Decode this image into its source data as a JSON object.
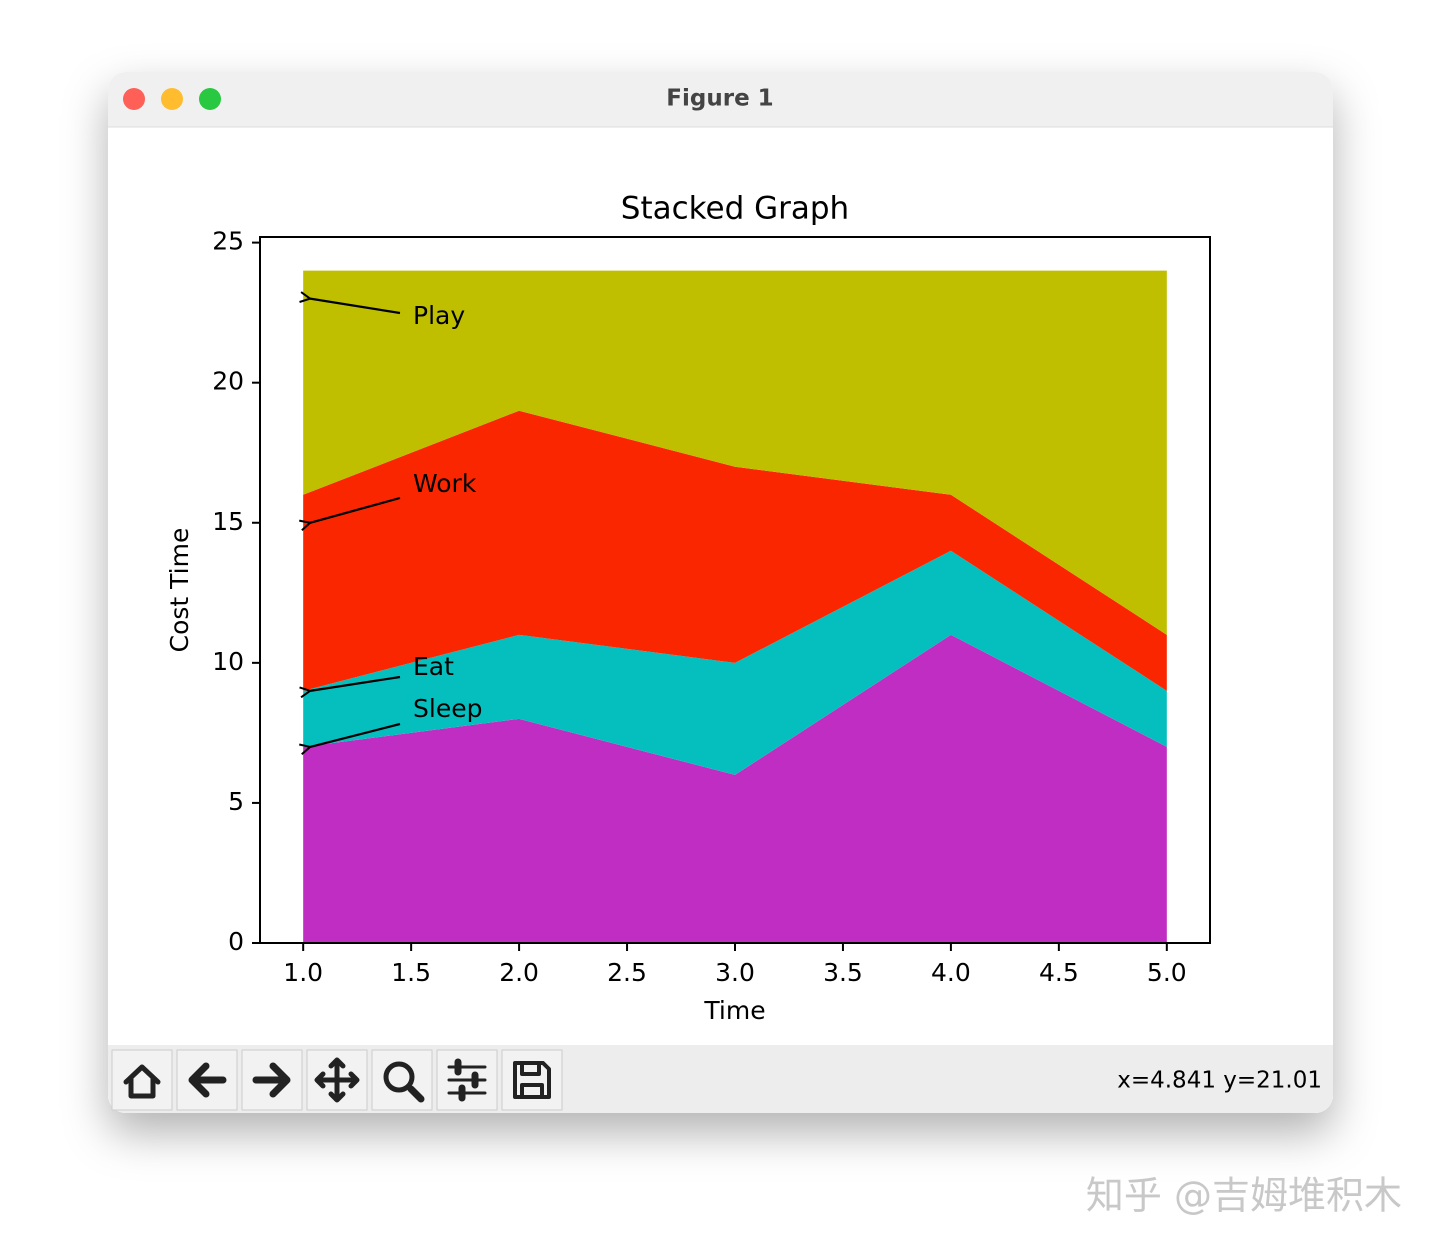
{
  "window": {
    "title": "Figure 1",
    "status": "x=4.841 y=21.01"
  },
  "watermark": "知乎 @吉姆堆积木",
  "chart_data": {
    "type": "stackplot",
    "title": "Stacked Graph",
    "x_label": "Time",
    "y_label": "Cost Time",
    "x": [
      1,
      2,
      3,
      4,
      5
    ],
    "series": [
      {
        "name": "Sleep",
        "color": "#c02dc2",
        "values": [
          7,
          8,
          6,
          11,
          7
        ]
      },
      {
        "name": "Eat",
        "color": "#05bfbf",
        "values": [
          2,
          3,
          4,
          3,
          2
        ]
      },
      {
        "name": "Work",
        "color": "#fa2600",
        "values": [
          7,
          8,
          7,
          2,
          2
        ]
      },
      {
        "name": "Play",
        "color": "#bfbf00",
        "values": [
          8,
          5,
          7,
          8,
          13
        ]
      }
    ],
    "annotations": [
      {
        "text": "Play",
        "x": 1,
        "y": 23
      },
      {
        "text": "Work",
        "x": 1,
        "y": 15
      },
      {
        "text": "Eat",
        "x": 1,
        "y": 9
      },
      {
        "text": "Sleep",
        "x": 1,
        "y": 7
      }
    ],
    "xlim": [
      0.8,
      5.2
    ],
    "xticks": [
      {
        "value": 1,
        "label": "1.0"
      },
      {
        "value": 1.5,
        "label": "1.5"
      },
      {
        "value": 2,
        "label": "2.0"
      },
      {
        "value": 2.5,
        "label": "2.5"
      },
      {
        "value": 3,
        "label": "3.0"
      },
      {
        "value": 3.5,
        "label": "3.5"
      },
      {
        "value": 4,
        "label": "4.0"
      },
      {
        "value": 4.5,
        "label": "4.5"
      },
      {
        "value": 5,
        "label": "5.0"
      }
    ],
    "ylim": [
      0,
      25.2
    ],
    "yticks": [
      0,
      5,
      10,
      15,
      20,
      25
    ]
  }
}
